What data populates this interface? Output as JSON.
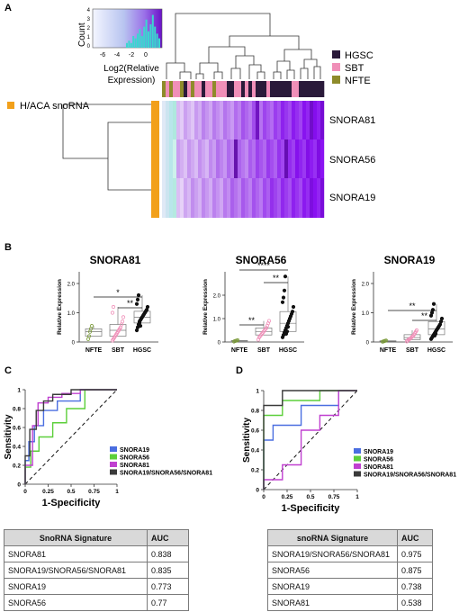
{
  "panel_letters": {
    "a": "A",
    "b": "B",
    "c": "C",
    "d": "D"
  },
  "colors": {
    "HGSC": "#2a1a3a",
    "SBT": "#f08fb8",
    "NFTE": "#8e8b2a",
    "snoRNA_bar": "#f2a01a",
    "SNORA19": "#4a6ee0",
    "SNORA56": "#5ccf3a",
    "SNORA81": "#c040d0",
    "combo": "#3a3a3a"
  },
  "panel_a": {
    "color_key": {
      "ylabel": "Count",
      "xlabel_line1": "Log2(Relative",
      "xlabel_line2": "Expression)",
      "x_ticks": [
        "-6",
        "-4",
        "-2",
        "0"
      ],
      "y_ticks": [
        "0",
        "1",
        "2",
        "3",
        "4"
      ]
    },
    "legend": [
      {
        "label": "HGSC",
        "color": "#2a1a3a"
      },
      {
        "label": "SBT",
        "color": "#f08fb8"
      },
      {
        "label": "NFTE",
        "color": "#8e8b2a"
      }
    ],
    "row_group_label": "H/ACA snoRNA",
    "row_labels": [
      "SNORA81",
      "SNORA56",
      "SNORA19"
    ]
  },
  "panel_b": {
    "ylabel": "Relative Expression",
    "categories": [
      "NFTE",
      "SBT",
      "HGSC"
    ],
    "plots": [
      {
        "title": "SNORA81",
        "y_ticks": [
          "0",
          "1.0",
          "2.0"
        ],
        "sig": [
          "*",
          "**"
        ]
      },
      {
        "title": "SNORA56",
        "y_ticks": [
          "0",
          "1.0",
          "2.0"
        ],
        "sig": [
          "**",
          "****",
          "**"
        ]
      },
      {
        "title": "SNORA19",
        "y_ticks": [
          "0",
          "1.0",
          "2.0"
        ],
        "sig": [
          "**",
          "**"
        ]
      }
    ]
  },
  "panel_c": {
    "ylabel": "Sensitivity",
    "xlabel": "1-Specificity",
    "x_ticks": [
      "0",
      "0.25",
      "0.5",
      "0.75",
      "1"
    ],
    "y_ticks": [
      "0",
      "0.2",
      "0.4",
      "0.6",
      "0.8",
      "1"
    ],
    "legend": [
      "SNORA19",
      "SNORA56",
      "SNORA81",
      "SNORA19/SNORA56/SNORA81"
    ],
    "table_header": [
      "SnoRNA Signature",
      "AUC"
    ],
    "table_rows": [
      [
        "SNORA81",
        "0.838"
      ],
      [
        "SNORA19/SNORA56/SNORA81",
        "0.835"
      ],
      [
        "SNORA19",
        "0.773"
      ],
      [
        "SNORA56",
        "0.77"
      ]
    ]
  },
  "panel_d": {
    "ylabel": "Sensitivity",
    "xlabel": "1-Specificity",
    "x_ticks": [
      "0",
      "0.25",
      "0.5",
      "0.75",
      "1"
    ],
    "y_ticks": [
      "0",
      "0.2",
      "0.4",
      "0.6",
      "0.8",
      "1"
    ],
    "legend": [
      "SNORA19",
      "SNORA56",
      "SNORA81",
      "SNORA19/SNORA56/SNORA81"
    ],
    "table_header": [
      "snoRNA Signature",
      "AUC"
    ],
    "table_rows": [
      [
        "SNORA19/SNORA56/SNORA81",
        "0.975"
      ],
      [
        "SNORA56",
        "0.875"
      ],
      [
        "SNORA19",
        "0.738"
      ],
      [
        "SNORA81",
        "0.538"
      ]
    ]
  },
  "chart_data": [
    {
      "type": "line",
      "title": "",
      "xlabel": "1-Specificity",
      "ylabel": "Sensitivity",
      "xlim": [
        0,
        1
      ],
      "ylim": [
        0,
        1
      ],
      "series": [
        {
          "name": "SNORA19",
          "x": [
            0,
            0,
            0.04,
            0.04,
            0.1,
            0.1,
            0.2,
            0.2,
            0.35,
            0.35,
            0.6,
            0.6,
            1
          ],
          "y": [
            0,
            0.25,
            0.25,
            0.45,
            0.45,
            0.62,
            0.62,
            0.78,
            0.78,
            0.88,
            0.88,
            1,
            1
          ]
        },
        {
          "name": "SNORA56",
          "x": [
            0,
            0,
            0.06,
            0.06,
            0.15,
            0.15,
            0.3,
            0.3,
            0.45,
            0.45,
            0.65,
            0.65,
            1
          ],
          "y": [
            0,
            0.18,
            0.18,
            0.35,
            0.35,
            0.5,
            0.5,
            0.65,
            0.65,
            0.8,
            0.8,
            1,
            1
          ]
        },
        {
          "name": "SNORA81",
          "x": [
            0,
            0,
            0.08,
            0.08,
            0.14,
            0.14,
            0.25,
            0.25,
            0.4,
            0.4,
            0.6,
            0.6,
            1
          ],
          "y": [
            0,
            0.2,
            0.2,
            0.62,
            0.62,
            0.86,
            0.86,
            0.92,
            0.92,
            0.96,
            0.96,
            1,
            1
          ]
        },
        {
          "name": "SNORA19/SNORA56/SNORA81",
          "x": [
            0,
            0,
            0.05,
            0.05,
            0.12,
            0.12,
            0.2,
            0.2,
            0.3,
            0.3,
            0.5,
            0.5,
            1
          ],
          "y": [
            0,
            0.3,
            0.3,
            0.58,
            0.58,
            0.78,
            0.78,
            0.88,
            0.88,
            0.95,
            0.95,
            1,
            1
          ]
        }
      ]
    },
    {
      "type": "line",
      "title": "",
      "xlabel": "1-Specificity",
      "ylabel": "Sensitivity",
      "xlim": [
        0,
        1
      ],
      "ylim": [
        0,
        1
      ],
      "series": [
        {
          "name": "SNORA19",
          "x": [
            0,
            0,
            0.1,
            0.1,
            0.4,
            0.4,
            0.8,
            0.8,
            1
          ],
          "y": [
            0,
            0.5,
            0.5,
            0.65,
            0.65,
            0.85,
            0.85,
            1,
            1
          ]
        },
        {
          "name": "SNORA56",
          "x": [
            0,
            0,
            0.2,
            0.2,
            0.6,
            0.6,
            1
          ],
          "y": [
            0,
            0.75,
            0.75,
            0.9,
            0.9,
            1,
            1
          ]
        },
        {
          "name": "SNORA81",
          "x": [
            0,
            0,
            0.2,
            0.2,
            0.4,
            0.4,
            0.6,
            0.6,
            0.8,
            0.8,
            1
          ],
          "y": [
            0,
            0.1,
            0.1,
            0.25,
            0.25,
            0.6,
            0.6,
            0.75,
            0.75,
            1,
            1
          ]
        },
        {
          "name": "SNORA19/SNORA56/SNORA81",
          "x": [
            0,
            0,
            0.2,
            0.2,
            1
          ],
          "y": [
            0,
            0.85,
            0.85,
            1,
            1
          ]
        }
      ]
    }
  ]
}
